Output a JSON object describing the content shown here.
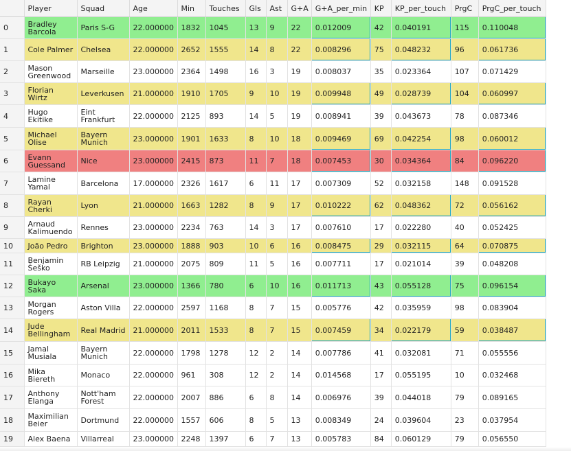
{
  "columns": [
    "",
    "Player",
    "Squad",
    "Age",
    "Min",
    "Touches",
    "Gls",
    "Ast",
    "G+A",
    "G+A_per_min",
    "KP",
    "KP_per_touch",
    "PrgC",
    "PrgC_per_touch"
  ],
  "row_colors": {
    "yellow": "#f0e68c",
    "green": "#90ee90",
    "red": "#f08080",
    "border_accent": "#20a8c0"
  },
  "rows": [
    {
      "idx": "0",
      "player": "Bradley Barcola",
      "squad": "Paris S-G",
      "age": "22.000000",
      "min": "1832",
      "touches": "1045",
      "gls": "13",
      "ast": "9",
      "ga": "22",
      "ga_per_min": "0.012009",
      "kp": "42",
      "kp_per_touch": "0.040191",
      "prgc": "115",
      "prgc_per_touch": "0.110048",
      "highlight": "green"
    },
    {
      "idx": "1",
      "player": "Cole Palmer",
      "squad": "Chelsea",
      "age": "22.000000",
      "min": "2652",
      "touches": "1555",
      "gls": "14",
      "ast": "8",
      "ga": "22",
      "ga_per_min": "0.008296",
      "kp": "75",
      "kp_per_touch": "0.048232",
      "prgc": "96",
      "prgc_per_touch": "0.061736",
      "highlight": "yellow"
    },
    {
      "idx": "2",
      "player": "Mason Greenwood",
      "squad": "Marseille",
      "age": "23.000000",
      "min": "2364",
      "touches": "1498",
      "gls": "16",
      "ast": "3",
      "ga": "19",
      "ga_per_min": "0.008037",
      "kp": "35",
      "kp_per_touch": "0.023364",
      "prgc": "107",
      "prgc_per_touch": "0.071429",
      "highlight": ""
    },
    {
      "idx": "3",
      "player": "Florian Wirtz",
      "squad": "Leverkusen",
      "age": "21.000000",
      "min": "1910",
      "touches": "1705",
      "gls": "9",
      "ast": "10",
      "ga": "19",
      "ga_per_min": "0.009948",
      "kp": "49",
      "kp_per_touch": "0.028739",
      "prgc": "104",
      "prgc_per_touch": "0.060997",
      "highlight": "yellow"
    },
    {
      "idx": "4",
      "player": "Hugo Ekitike",
      "squad": "Eint Frankfurt",
      "age": "22.000000",
      "min": "2125",
      "touches": "893",
      "gls": "14",
      "ast": "5",
      "ga": "19",
      "ga_per_min": "0.008941",
      "kp": "39",
      "kp_per_touch": "0.043673",
      "prgc": "78",
      "prgc_per_touch": "0.087346",
      "highlight": ""
    },
    {
      "idx": "5",
      "player": "Michael Olise",
      "squad": "Bayern Munich",
      "age": "23.000000",
      "min": "1901",
      "touches": "1633",
      "gls": "8",
      "ast": "10",
      "ga": "18",
      "ga_per_min": "0.009469",
      "kp": "69",
      "kp_per_touch": "0.042254",
      "prgc": "98",
      "prgc_per_touch": "0.060012",
      "highlight": "yellow"
    },
    {
      "idx": "6",
      "player": "Evann Guessand",
      "squad": "Nice",
      "age": "23.000000",
      "min": "2415",
      "touches": "873",
      "gls": "11",
      "ast": "7",
      "ga": "18",
      "ga_per_min": "0.007453",
      "kp": "30",
      "kp_per_touch": "0.034364",
      "prgc": "84",
      "prgc_per_touch": "0.096220",
      "highlight": "red"
    },
    {
      "idx": "7",
      "player": "Lamine Yamal",
      "squad": "Barcelona",
      "age": "17.000000",
      "min": "2326",
      "touches": "1617",
      "gls": "6",
      "ast": "11",
      "ga": "17",
      "ga_per_min": "0.007309",
      "kp": "52",
      "kp_per_touch": "0.032158",
      "prgc": "148",
      "prgc_per_touch": "0.091528",
      "highlight": ""
    },
    {
      "idx": "8",
      "player": "Rayan Cherki",
      "squad": "Lyon",
      "age": "21.000000",
      "min": "1663",
      "touches": "1282",
      "gls": "8",
      "ast": "9",
      "ga": "17",
      "ga_per_min": "0.010222",
      "kp": "62",
      "kp_per_touch": "0.048362",
      "prgc": "72",
      "prgc_per_touch": "0.056162",
      "highlight": "yellow"
    },
    {
      "idx": "9",
      "player": "Arnaud Kalimuendo",
      "squad": "Rennes",
      "age": "23.000000",
      "min": "2234",
      "touches": "763",
      "gls": "14",
      "ast": "3",
      "ga": "17",
      "ga_per_min": "0.007610",
      "kp": "17",
      "kp_per_touch": "0.022280",
      "prgc": "40",
      "prgc_per_touch": "0.052425",
      "highlight": ""
    },
    {
      "idx": "10",
      "player": "João Pedro",
      "squad": "Brighton",
      "age": "23.000000",
      "min": "1888",
      "touches": "903",
      "gls": "10",
      "ast": "6",
      "ga": "16",
      "ga_per_min": "0.008475",
      "kp": "29",
      "kp_per_touch": "0.032115",
      "prgc": "64",
      "prgc_per_touch": "0.070875",
      "highlight": "yellow"
    },
    {
      "idx": "11",
      "player": "Benjamin Šeško",
      "squad": "RB Leipzig",
      "age": "21.000000",
      "min": "2075",
      "touches": "809",
      "gls": "11",
      "ast": "5",
      "ga": "16",
      "ga_per_min": "0.007711",
      "kp": "17",
      "kp_per_touch": "0.021014",
      "prgc": "39",
      "prgc_per_touch": "0.048208",
      "highlight": ""
    },
    {
      "idx": "12",
      "player": "Bukayo Saka",
      "squad": "Arsenal",
      "age": "23.000000",
      "min": "1366",
      "touches": "780",
      "gls": "6",
      "ast": "10",
      "ga": "16",
      "ga_per_min": "0.011713",
      "kp": "43",
      "kp_per_touch": "0.055128",
      "prgc": "75",
      "prgc_per_touch": "0.096154",
      "highlight": "green"
    },
    {
      "idx": "13",
      "player": "Morgan Rogers",
      "squad": "Aston Villa",
      "age": "22.000000",
      "min": "2597",
      "touches": "1168",
      "gls": "8",
      "ast": "7",
      "ga": "15",
      "ga_per_min": "0.005776",
      "kp": "42",
      "kp_per_touch": "0.035959",
      "prgc": "98",
      "prgc_per_touch": "0.083904",
      "highlight": ""
    },
    {
      "idx": "14",
      "player": "Jude Bellingham",
      "squad": "Real Madrid",
      "age": "21.000000",
      "min": "2011",
      "touches": "1533",
      "gls": "8",
      "ast": "7",
      "ga": "15",
      "ga_per_min": "0.007459",
      "kp": "34",
      "kp_per_touch": "0.022179",
      "prgc": "59",
      "prgc_per_touch": "0.038487",
      "highlight": "yellow"
    },
    {
      "idx": "15",
      "player": "Jamal Musiala",
      "squad": "Bayern Munich",
      "age": "22.000000",
      "min": "1798",
      "touches": "1278",
      "gls": "12",
      "ast": "2",
      "ga": "14",
      "ga_per_min": "0.007786",
      "kp": "41",
      "kp_per_touch": "0.032081",
      "prgc": "71",
      "prgc_per_touch": "0.055556",
      "highlight": ""
    },
    {
      "idx": "16",
      "player": "Mika Biereth",
      "squad": "Monaco",
      "age": "22.000000",
      "min": "961",
      "touches": "308",
      "gls": "12",
      "ast": "2",
      "ga": "14",
      "ga_per_min": "0.014568",
      "kp": "17",
      "kp_per_touch": "0.055195",
      "prgc": "10",
      "prgc_per_touch": "0.032468",
      "highlight": ""
    },
    {
      "idx": "17",
      "player": "Anthony Elanga",
      "squad": "Nott'ham Forest",
      "age": "22.000000",
      "min": "2007",
      "touches": "886",
      "gls": "6",
      "ast": "8",
      "ga": "14",
      "ga_per_min": "0.006976",
      "kp": "39",
      "kp_per_touch": "0.044018",
      "prgc": "79",
      "prgc_per_touch": "0.089165",
      "highlight": ""
    },
    {
      "idx": "18",
      "player": "Maximilian Beier",
      "squad": "Dortmund",
      "age": "22.000000",
      "min": "1557",
      "touches": "606",
      "gls": "8",
      "ast": "5",
      "ga": "13",
      "ga_per_min": "0.008349",
      "kp": "24",
      "kp_per_touch": "0.039604",
      "prgc": "23",
      "prgc_per_touch": "0.037954",
      "highlight": ""
    },
    {
      "idx": "19",
      "player": "Alex Baena",
      "squad": "Villarreal",
      "age": "23.000000",
      "min": "2248",
      "touches": "1397",
      "gls": "6",
      "ast": "7",
      "ga": "13",
      "ga_per_min": "0.005783",
      "kp": "84",
      "kp_per_touch": "0.060129",
      "prgc": "79",
      "prgc_per_touch": "0.056550",
      "highlight": ""
    }
  ]
}
